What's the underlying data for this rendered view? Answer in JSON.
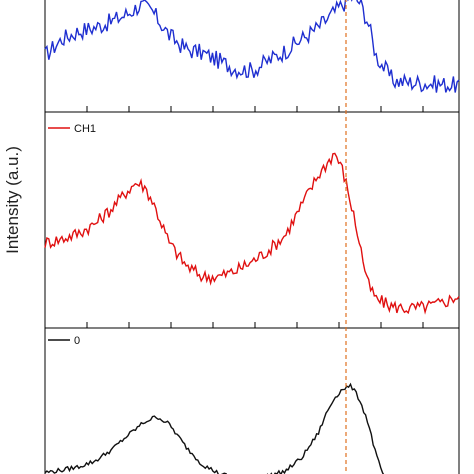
{
  "chart_data": [
    {
      "type": "line",
      "ylabel": "Intensity (a.u.)",
      "x_range": [
        0,
        100
      ],
      "grid": false,
      "series": [
        {
          "color": "#1f2fd0",
          "x": [
            0,
            4,
            8,
            12,
            16,
            20,
            23,
            26,
            30,
            34,
            38,
            42,
            46,
            50,
            54,
            58,
            62,
            66,
            70,
            72,
            74,
            76,
            78,
            80,
            84,
            88,
            92,
            96,
            100
          ],
          "y": [
            0.45,
            0.62,
            0.7,
            0.74,
            0.8,
            0.88,
            0.97,
            0.9,
            0.66,
            0.52,
            0.48,
            0.4,
            0.32,
            0.3,
            0.4,
            0.5,
            0.62,
            0.74,
            0.9,
            0.98,
            1.05,
            1.0,
            0.8,
            0.45,
            0.2,
            0.18,
            0.17,
            0.16,
            0.15
          ]
        }
      ]
    },
    {
      "type": "line",
      "ylabel": "Intensity (a.u.)",
      "x_range": [
        0,
        100
      ],
      "grid": false,
      "legend": "top-left",
      "series": [
        {
          "name": "CH1",
          "color": "#e01010",
          "x": [
            0,
            4,
            8,
            12,
            16,
            20,
            22,
            24,
            26,
            30,
            34,
            38,
            42,
            46,
            50,
            54,
            58,
            62,
            64,
            66,
            68,
            70,
            72,
            74,
            76,
            78,
            80,
            84,
            88,
            92,
            96,
            100
          ],
          "y": [
            0.4,
            0.42,
            0.45,
            0.5,
            0.58,
            0.68,
            0.72,
            0.7,
            0.62,
            0.4,
            0.28,
            0.22,
            0.22,
            0.25,
            0.3,
            0.36,
            0.44,
            0.6,
            0.68,
            0.76,
            0.82,
            0.88,
            0.78,
            0.6,
            0.4,
            0.18,
            0.1,
            0.06,
            0.05,
            0.06,
            0.08,
            0.12
          ]
        }
      ]
    },
    {
      "type": "line",
      "x_range": [
        0,
        100
      ],
      "grid": false,
      "legend": "top-left",
      "series": [
        {
          "name": "0",
          "color": "#111111",
          "x": [
            0,
            4,
            8,
            12,
            16,
            20,
            24,
            27,
            30,
            34,
            38,
            42,
            46,
            50,
            54,
            58,
            62,
            66,
            68,
            70,
            72,
            74,
            76,
            78,
            80,
            82
          ],
          "y": [
            0.05,
            0.07,
            0.1,
            0.15,
            0.25,
            0.38,
            0.5,
            0.55,
            0.48,
            0.28,
            0.12,
            0.04,
            0.0,
            0.0,
            0.02,
            0.06,
            0.18,
            0.4,
            0.58,
            0.72,
            0.8,
            0.82,
            0.7,
            0.5,
            0.2,
            0.0
          ]
        }
      ]
    }
  ]
}
